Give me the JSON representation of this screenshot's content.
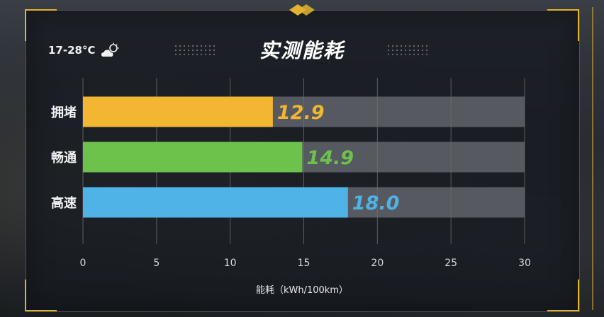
{
  "weather": {
    "temperature": "17-28°C",
    "icon": "partly-cloudy-icon"
  },
  "chart_data": {
    "type": "bar",
    "orientation": "horizontal",
    "title": "实测能耗",
    "categories": [
      "拥堵",
      "畅通",
      "高速"
    ],
    "values": [
      12.9,
      14.9,
      18.0
    ],
    "value_labels": [
      "12.9",
      "14.9",
      "18.0"
    ],
    "xlabel": "能耗（kWh/100km）",
    "xlim": [
      0,
      30
    ],
    "xticks": [
      0,
      5,
      10,
      15,
      20,
      25,
      30
    ],
    "grid": true,
    "colors": [
      "#f2b632",
      "#6cc24a",
      "#4fb3e8"
    ],
    "track_color": "#6b6f74"
  }
}
